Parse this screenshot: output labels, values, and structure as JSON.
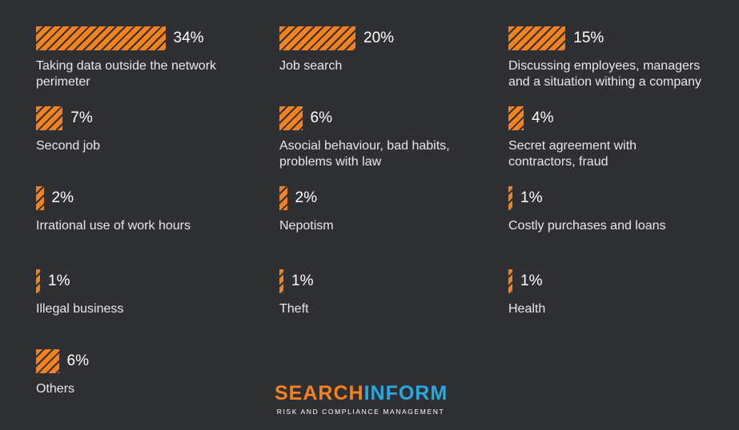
{
  "chart_data": {
    "type": "bar",
    "categories": [
      "Taking data outside the network perimeter",
      "Job search",
      "Discussing employees, managers and a situation withing a company",
      "Second job",
      "Asocial behaviour, bad habits, problems with law",
      "Secret agreement with contractors, fraud",
      "Irrational use of work hours",
      "Nepotism",
      "Costly purchases and loans",
      "Illegal business",
      "Theft",
      "Health",
      "Others"
    ],
    "values": [
      34,
      20,
      15,
      7,
      6,
      4,
      2,
      2,
      1,
      1,
      1,
      1,
      6
    ],
    "unit": "%",
    "items": [
      {
        "value": 34,
        "label": "34%",
        "text_lines": [
          "Taking data outside the network",
          "perimeter"
        ]
      },
      {
        "value": 20,
        "label": "20%",
        "text_lines": [
          "Job search"
        ]
      },
      {
        "value": 15,
        "label": "15%",
        "text_lines": [
          "Discussing employees, managers",
          "and a situation withing a company"
        ]
      },
      {
        "value": 7,
        "label": "7%",
        "text_lines": [
          "Second job"
        ]
      },
      {
        "value": 6,
        "label": "6%",
        "text_lines": [
          "Asocial behaviour, bad habits,",
          "problems with law"
        ]
      },
      {
        "value": 4,
        "label": "4%",
        "text_lines": [
          "Secret agreement with",
          "contractors, fraud"
        ]
      },
      {
        "value": 2,
        "label": "2%",
        "text_lines": [
          "Irrational use of work hours"
        ]
      },
      {
        "value": 2,
        "label": "2%",
        "text_lines": [
          "Nepotism"
        ]
      },
      {
        "value": 1,
        "label": "1%",
        "text_lines": [
          "Costly purchases and loans"
        ]
      },
      {
        "value": 1,
        "label": "1%",
        "text_lines": [
          "Illegal business"
        ]
      },
      {
        "value": 1,
        "label": "1%",
        "text_lines": [
          "Theft"
        ]
      },
      {
        "value": 1,
        "label": "1%",
        "text_lines": [
          "Health"
        ]
      },
      {
        "value": 6,
        "label": "6%",
        "text_lines": [
          "Others"
        ]
      }
    ],
    "bar_color": "#f5821f",
    "background": "#2f3033"
  },
  "logo": {
    "part1": "SEARCH",
    "part2": "INFORM",
    "tagline": "RISK AND COMPLIANCE MANAGEMENT",
    "color1": "#f5821f",
    "color2": "#2aa9e0"
  }
}
